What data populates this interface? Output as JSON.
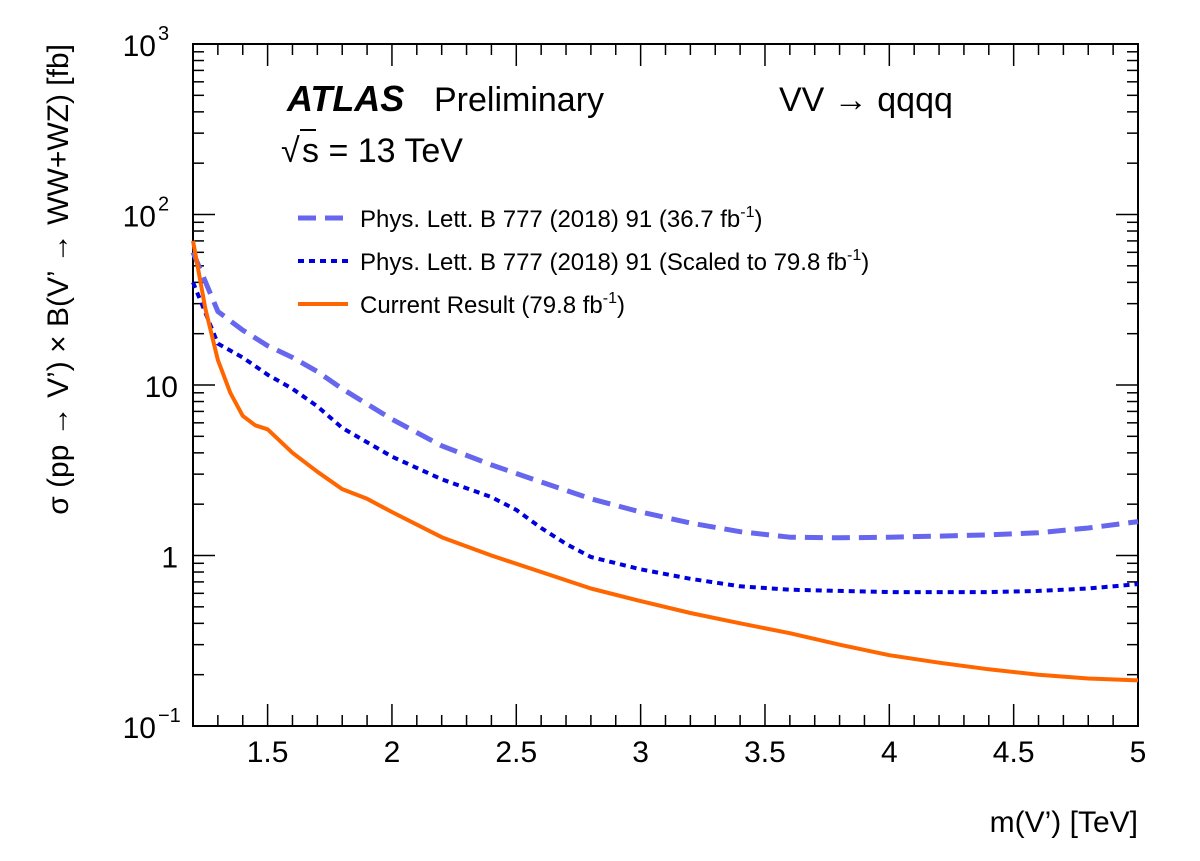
{
  "chart_data": {
    "type": "line",
    "xlabel": "m(V’) [TeV]",
    "ylabel": "σ (pp → V’) × B(V’ → WW+WZ) [fb]",
    "xlim": [
      1.2,
      5.0
    ],
    "ylim": [
      0.1,
      1000
    ],
    "yscale": "log",
    "x_ticks": [
      {
        "value": 1.5,
        "label": "1.5"
      },
      {
        "value": 2,
        "label": "2"
      },
      {
        "value": 2.5,
        "label": "2.5"
      },
      {
        "value": 3,
        "label": "3"
      },
      {
        "value": 3.5,
        "label": "3.5"
      },
      {
        "value": 4,
        "label": "4"
      },
      {
        "value": 4.5,
        "label": "4.5"
      },
      {
        "value": 5,
        "label": "5"
      }
    ],
    "y_ticks": [
      {
        "value": 0.1,
        "base": "10",
        "exp": "−1",
        "label": ""
      },
      {
        "value": 1,
        "base": "",
        "exp": "",
        "label": "1"
      },
      {
        "value": 10,
        "base": "",
        "exp": "",
        "label": "10"
      },
      {
        "value": 100,
        "base": "10",
        "exp": "2",
        "label": ""
      },
      {
        "value": 1000,
        "base": "10",
        "exp": "3",
        "label": ""
      }
    ],
    "annotations": {
      "experiment": "ATLAS",
      "status": "Preliminary",
      "process": "VV → qqqq",
      "energy_sqrt": "√",
      "energy_rest": "s = 13 TeV"
    },
    "legend_position": "top-left",
    "series": [
      {
        "name": "Phys. Lett. B 777 (2018) 91 (36.7 fb",
        "name_sup": "-1",
        "name_tail": ")",
        "color": "#6666ee",
        "style": "dashed",
        "x": [
          1.2,
          1.3,
          1.4,
          1.5,
          1.6,
          1.7,
          1.8,
          2.0,
          2.2,
          2.4,
          2.6,
          2.8,
          3.0,
          3.2,
          3.4,
          3.6,
          3.8,
          4.0,
          4.2,
          4.4,
          4.6,
          4.8,
          5.0
        ],
        "y": [
          60,
          27,
          21,
          17,
          14.5,
          12,
          9.5,
          6.3,
          4.4,
          3.4,
          2.7,
          2.15,
          1.8,
          1.55,
          1.38,
          1.28,
          1.27,
          1.28,
          1.3,
          1.32,
          1.36,
          1.45,
          1.58
        ]
      },
      {
        "name": "Phys. Lett. B 777 (2018) 91 (Scaled to 79.8 fb",
        "name_sup": "-1",
        "name_tail": ")",
        "color": "#0000dd",
        "style": "dotted",
        "x": [
          1.2,
          1.3,
          1.4,
          1.5,
          1.6,
          1.7,
          1.8,
          2.0,
          2.2,
          2.4,
          2.5,
          2.6,
          2.7,
          2.8,
          3.0,
          3.2,
          3.4,
          3.6,
          3.8,
          4.0,
          4.2,
          4.4,
          4.6,
          4.8,
          5.0
        ],
        "y": [
          40,
          17.5,
          14.5,
          11.5,
          9.5,
          7.5,
          5.6,
          3.8,
          2.8,
          2.2,
          1.85,
          1.45,
          1.17,
          0.98,
          0.83,
          0.73,
          0.66,
          0.63,
          0.62,
          0.61,
          0.61,
          0.61,
          0.62,
          0.64,
          0.68
        ]
      },
      {
        "name": "Current Result (79.8 fb",
        "name_sup": "-1",
        "name_tail": ")",
        "color": "#ff6600",
        "style": "solid",
        "x": [
          1.2,
          1.25,
          1.3,
          1.35,
          1.4,
          1.45,
          1.5,
          1.6,
          1.7,
          1.8,
          1.9,
          2.0,
          2.2,
          2.4,
          2.6,
          2.8,
          3.0,
          3.2,
          3.4,
          3.6,
          3.8,
          4.0,
          4.2,
          4.4,
          4.6,
          4.8,
          5.0
        ],
        "y": [
          70,
          28,
          14,
          9,
          6.6,
          5.8,
          5.5,
          4.0,
          3.1,
          2.45,
          2.15,
          1.8,
          1.28,
          1.0,
          0.8,
          0.64,
          0.54,
          0.46,
          0.4,
          0.35,
          0.3,
          0.26,
          0.235,
          0.215,
          0.2,
          0.19,
          0.185
        ]
      }
    ]
  }
}
